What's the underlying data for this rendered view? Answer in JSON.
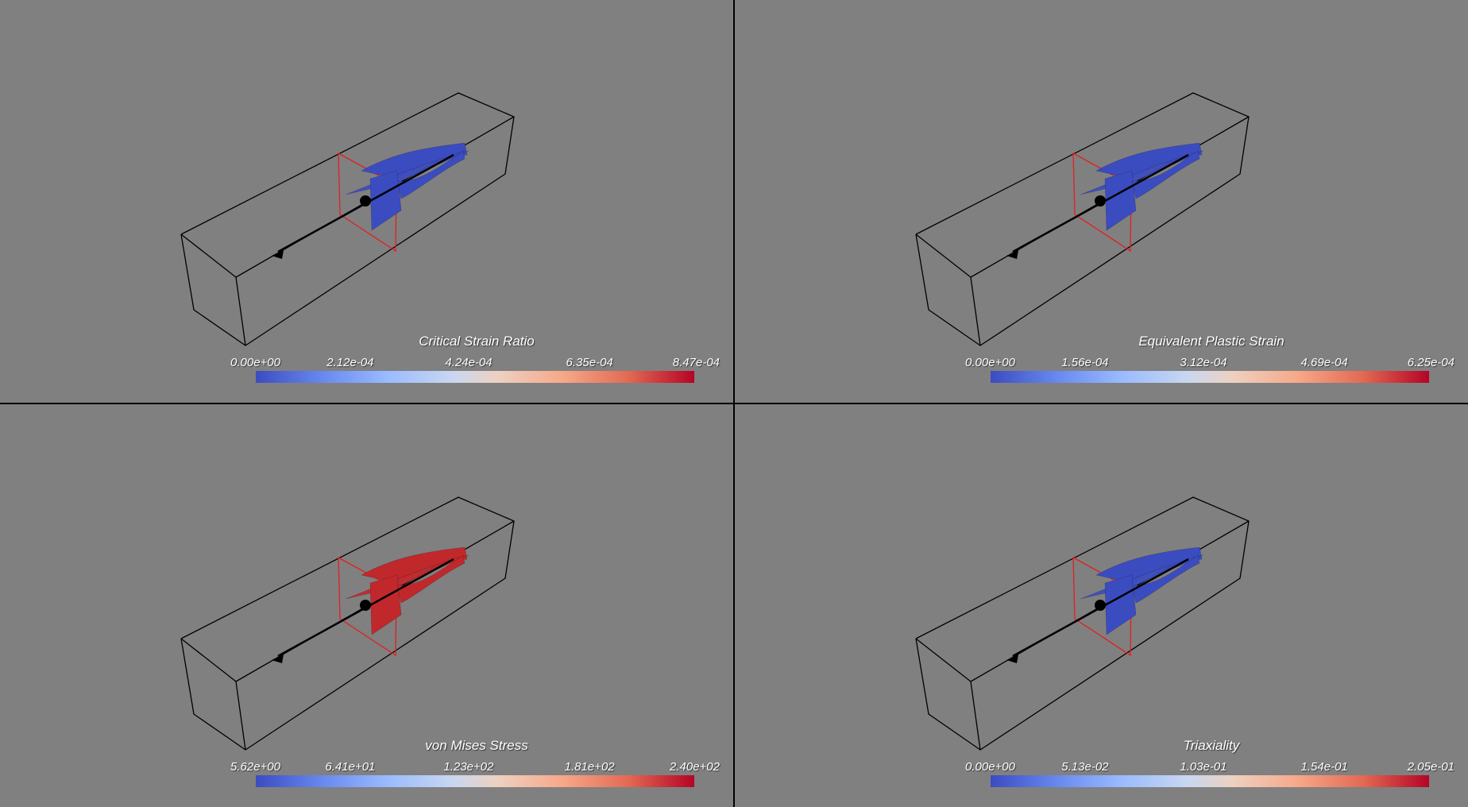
{
  "viewports": [
    {
      "colorbar_title": "Critical Strain Ratio",
      "tick_labels": [
        "0.00e+00",
        "2.12e-04",
        "4.24e-04",
        "6.35e-04",
        "8.47e-04"
      ],
      "surface_color": "#3b4cc0"
    },
    {
      "colorbar_title": "Equivalent Plastic Strain",
      "tick_labels": [
        "0.00e+00",
        "1.56e-04",
        "3.12e-04",
        "4.69e-04",
        "6.25e-04"
      ],
      "surface_color": "#3b4cc0"
    },
    {
      "colorbar_title": "von Mises Stress",
      "tick_labels": [
        "5.62e+00",
        "6.41e+01",
        "1.23e+02",
        "1.81e+02",
        "2.40e+02"
      ],
      "surface_color": "#c0282c"
    },
    {
      "colorbar_title": "Triaxiality",
      "tick_labels": [
        "0.00e+00",
        "5.13e-02",
        "1.03e-01",
        "1.54e-01",
        "2.05e-01"
      ],
      "surface_color": "#3b4cc0"
    }
  ],
  "colors": {
    "background": "#808080",
    "bounding_box": "#000000",
    "section_plane": "#e02020",
    "colormap": "coolwarm"
  }
}
